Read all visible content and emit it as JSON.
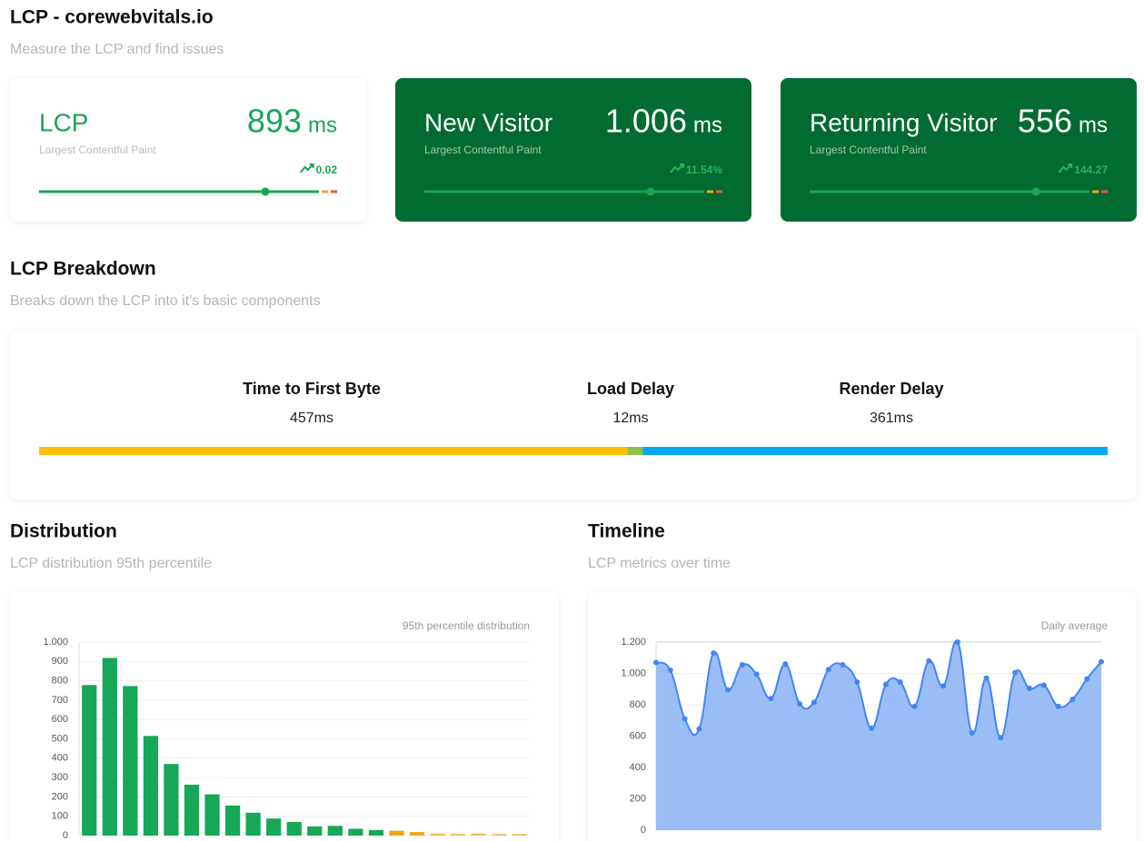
{
  "header": {
    "title": "LCP - corewebvitals.io",
    "subtitle": "Measure the LCP and find issues"
  },
  "cards": [
    {
      "label": "LCP",
      "value": "893",
      "unit": "ms",
      "subtitle": "Largest Contentful Paint",
      "trend": "0.02"
    },
    {
      "label": "New Visitor",
      "value": "1.006",
      "unit": "ms",
      "subtitle": "Largest Contentful Paint",
      "trend": "11.54%"
    },
    {
      "label": "Returning Visitor",
      "value": "556",
      "unit": "ms",
      "subtitle": "Largest Contentful Paint",
      "trend": "144.27"
    }
  ],
  "breakdown": {
    "title": "LCP Breakdown",
    "subtitle": "Breaks down the LCP into it's basic components",
    "items": [
      {
        "label": "Time to First Byte",
        "value": 457,
        "value_label": "457ms",
        "color": "#ffc107"
      },
      {
        "label": "Load Delay",
        "value": 12,
        "value_label": "12ms",
        "color": "#8bc34a"
      },
      {
        "label": "Render Delay",
        "value": 361,
        "value_label": "361ms",
        "color": "#03a9f4"
      }
    ]
  },
  "chart_data": [
    {
      "type": "bar",
      "title": "Distribution",
      "subtitle": "LCP distribution 95th percentile",
      "note": "95th percentile distribution",
      "categories": [
        null,
        null,
        null,
        null,
        null,
        null,
        null,
        null,
        null,
        null,
        null,
        null,
        null,
        null,
        null,
        null,
        null,
        null,
        null,
        null,
        null,
        null
      ],
      "values": [
        778,
        918,
        773,
        515,
        370,
        263,
        213,
        155,
        118,
        88,
        70,
        47,
        50,
        35,
        28,
        25,
        18,
        10,
        8,
        10,
        8,
        8
      ],
      "colors": [
        "#16a757",
        "#16a757",
        "#16a757",
        "#16a757",
        "#16a757",
        "#16a757",
        "#16a757",
        "#16a757",
        "#16a757",
        "#16a757",
        "#16a757",
        "#16a757",
        "#16a757",
        "#16a757",
        "#16a757",
        "#f5a31a",
        "#f5a31a",
        "#f8b84e",
        "#f8b84e",
        "#f8b84e",
        "#f8b84e",
        "#f8b84e"
      ],
      "ylim": [
        0,
        1000
      ],
      "yticks": [
        0,
        100,
        200,
        300,
        400,
        500,
        600,
        700,
        800,
        900,
        {
          "value": 1000,
          "label": "1.000"
        }
      ],
      "grid": true
    },
    {
      "type": "area",
      "title": "Timeline",
      "subtitle": "LCP metrics over time",
      "note": "Daily average",
      "categories": [
        null,
        null,
        null,
        null,
        null,
        null,
        null,
        null,
        null,
        null,
        null,
        null,
        null,
        null,
        null,
        null,
        null,
        null,
        null,
        null,
        null,
        null,
        null,
        null,
        null,
        null,
        null,
        null,
        null,
        null,
        null,
        null
      ],
      "values": [
        1070,
        1020,
        710,
        645,
        1130,
        895,
        1055,
        995,
        840,
        1060,
        805,
        815,
        1025,
        1055,
        945,
        650,
        930,
        945,
        790,
        1080,
        920,
        1200,
        620,
        970,
        590,
        1005,
        905,
        925,
        790,
        835,
        965,
        1075
      ],
      "color": "#4285f4",
      "fill": "#9bbdf6",
      "ylim": [
        0,
        1200
      ],
      "yticks": [
        0,
        200,
        400,
        600,
        800,
        {
          "value": 1000,
          "label": "1.000"
        },
        {
          "value": 1200,
          "label": "1.200"
        }
      ],
      "grid": true
    }
  ]
}
